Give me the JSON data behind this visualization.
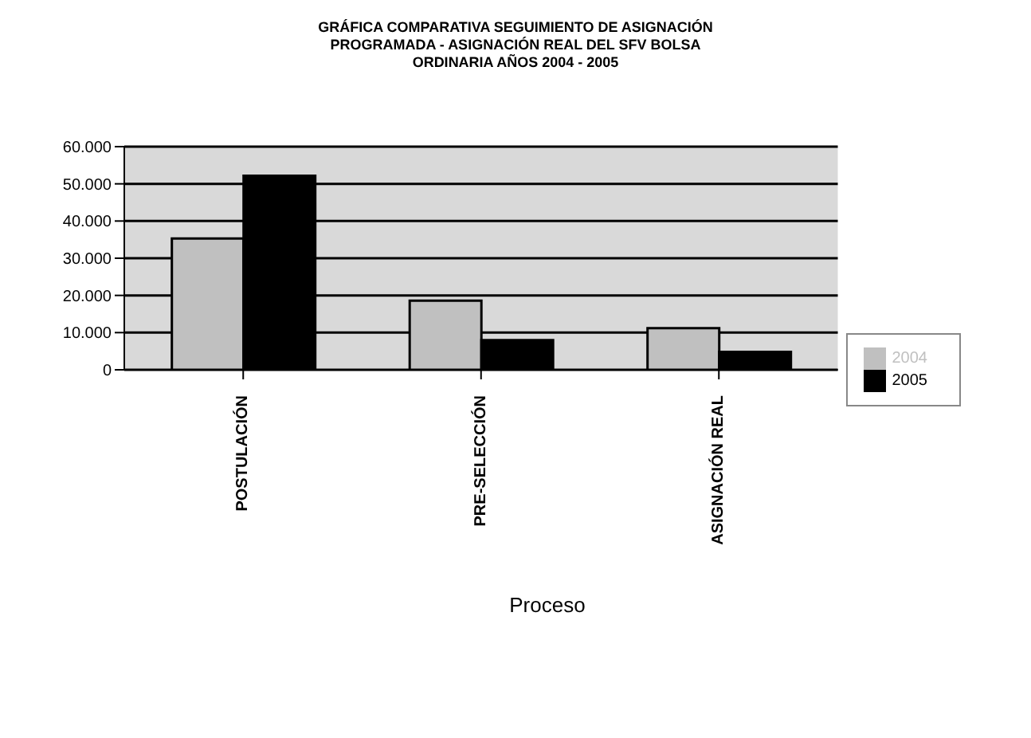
{
  "chart_data": {
    "type": "bar",
    "title": "GRÁFICA COMPARATIVA SEGUIMIENTO DE ASIGNACIÓN\nPROGRAMADA - ASIGNACIÓN REAL DEL SFV BOLSA\nORDINARIA AÑOS 2004 - 2005",
    "xlabel": "Proceso",
    "categories": [
      "POSTULACIÓN",
      "PRE-SELECCIÓN",
      "ASIGNACIÓN REAL"
    ],
    "series": [
      {
        "name": "2004",
        "color": "#c0c0c0",
        "values": [
          35300,
          18600,
          11200
        ]
      },
      {
        "name": "2005",
        "color": "#000000",
        "values": [
          52200,
          8000,
          4800
        ]
      }
    ],
    "ylim": [
      0,
      60000
    ],
    "yticks": [
      {
        "value": 0,
        "label": "0"
      },
      {
        "value": 10000,
        "label": "10.000"
      },
      {
        "value": 20000,
        "label": "20.000"
      },
      {
        "value": 30000,
        "label": "30.000"
      },
      {
        "value": 40000,
        "label": "40.000"
      },
      {
        "value": 50000,
        "label": "50.000"
      },
      {
        "value": 60000,
        "label": "60.000"
      }
    ],
    "grid": "y",
    "legend": "right"
  }
}
